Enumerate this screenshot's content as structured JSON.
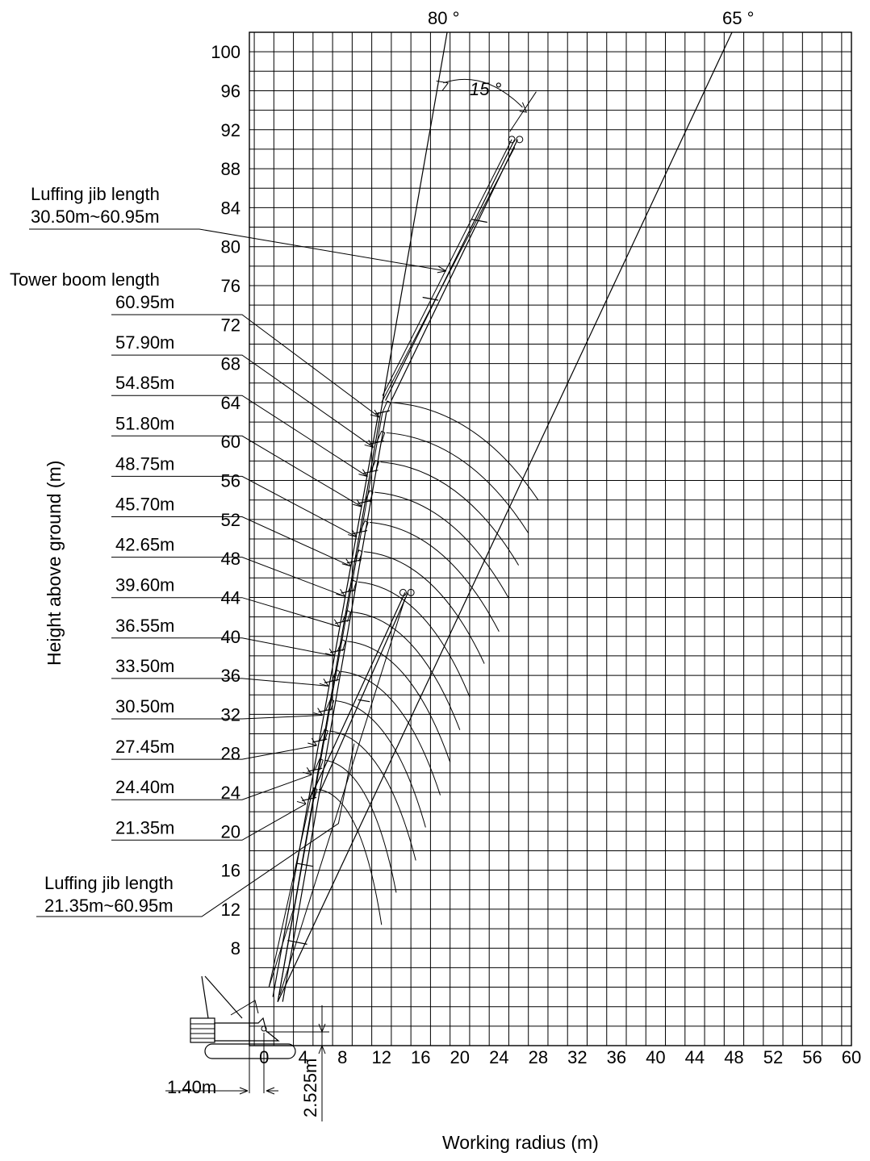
{
  "chart_data": {
    "type": "diagram",
    "xlabel": "Working radius (m)",
    "ylabel": "Height above ground (m)",
    "x_ticks": [
      "0",
      "4",
      "8",
      "12",
      "16",
      "20",
      "24",
      "28",
      "32",
      "36",
      "40",
      "44",
      "48",
      "52",
      "56",
      "60"
    ],
    "y_ticks": [
      "8",
      "12",
      "16",
      "20",
      "24",
      "28",
      "32",
      "36",
      "40",
      "44",
      "48",
      "52",
      "56",
      "60",
      "64",
      "68",
      "72",
      "76",
      "80",
      "84",
      "88",
      "92",
      "96",
      "100"
    ],
    "xlim": [
      -1.5,
      60
    ],
    "ylim": [
      -2,
      102
    ],
    "grid": true,
    "angle_labels": {
      "a80": "80 °",
      "a65": "65 °",
      "a15": "15 °"
    },
    "angle_lines": [
      {
        "label": "80°",
        "from": [
          1.4,
          2.5
        ],
        "to": [
          18.7,
          102
        ]
      },
      {
        "label": "65°",
        "from": [
          1.4,
          2.5
        ],
        "to": [
          47.8,
          102
        ]
      }
    ],
    "labels": {
      "luffing_top_line1": "Luffing jib length",
      "luffing_top_line2": "30.50m~60.95m",
      "tower_boom": "Tower boom length",
      "luffing_bottom_line1": "Luffing jib length",
      "luffing_bottom_line2": "21.35m~60.95m",
      "pivot_offset": "1.40m",
      "pivot_height": "2.525m"
    },
    "tower_boom_lengths": [
      {
        "label": "60.95m",
        "tip": [
          12.1,
          63.0
        ]
      },
      {
        "label": "57.90m",
        "tip": [
          11.5,
          59.9
        ]
      },
      {
        "label": "54.85m",
        "tip": [
          10.9,
          56.9
        ]
      },
      {
        "label": "51.80m",
        "tip": [
          10.3,
          53.8
        ]
      },
      {
        "label": "48.75m",
        "tip": [
          9.8,
          50.7
        ]
      },
      {
        "label": "45.70m",
        "tip": [
          9.2,
          47.7
        ]
      },
      {
        "label": "42.65m",
        "tip": [
          8.6,
          44.6
        ]
      },
      {
        "label": "39.60m",
        "tip": [
          8.0,
          41.5
        ]
      },
      {
        "label": "36.55m",
        "tip": [
          7.5,
          38.5
        ]
      },
      {
        "label": "33.50m",
        "tip": [
          6.9,
          35.4
        ]
      },
      {
        "label": "30.50m",
        "tip": [
          6.3,
          32.4
        ]
      },
      {
        "label": "27.45m",
        "tip": [
          5.7,
          29.3
        ]
      },
      {
        "label": "24.40m",
        "tip": [
          5.2,
          26.3
        ]
      },
      {
        "label": "21.35m",
        "tip": [
          4.6,
          23.3
        ]
      }
    ],
    "jib_arcs_end_radius": [
      28,
      27,
      26,
      25,
      24,
      22.5,
      21,
      20,
      19,
      18,
      16.5,
      15.5,
      13.5,
      12
    ]
  }
}
